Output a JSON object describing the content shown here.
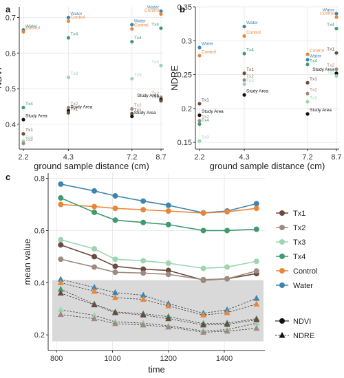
{
  "chart_data": [
    {
      "panel": "a",
      "type": "scatter",
      "xlabel": "ground sample distance (cm)",
      "ylabel": "NDVI",
      "x_ticks": [
        2.2,
        4.3,
        7.2,
        8.7
      ],
      "y_ticks": [
        0.4,
        0.5,
        0.6,
        0.7
      ],
      "ylim": [
        0.33,
        0.73
      ],
      "points": [
        {
          "name": "Water",
          "color": "#3d85b0",
          "x": 2.2,
          "y": 0.665
        },
        {
          "name": "Control",
          "color": "#e8873a",
          "x": 2.2,
          "y": 0.66
        },
        {
          "name": "Tx4",
          "color": "#3f9a6e",
          "x": 2.2,
          "y": 0.447
        },
        {
          "name": "Study Area",
          "color": "#111111",
          "x": 2.2,
          "y": 0.413
        },
        {
          "name": "Tx1",
          "color": "#6b4b3e",
          "x": 2.2,
          "y": 0.373
        },
        {
          "name": "Tx3",
          "color": "#9bd6b0",
          "x": 2.2,
          "y": 0.352
        },
        {
          "name": "Tx2",
          "color": "#9e8a82",
          "x": 2.2,
          "y": 0.346
        },
        {
          "name": "Water",
          "color": "#3d85b0",
          "x": 4.3,
          "y": 0.7
        },
        {
          "name": "Control",
          "color": "#e8873a",
          "x": 4.3,
          "y": 0.69
        },
        {
          "name": "Tx4",
          "color": "#3f9a6e",
          "x": 4.3,
          "y": 0.643
        },
        {
          "name": "Tx3",
          "color": "#9bd6b0",
          "x": 4.3,
          "y": 0.532
        },
        {
          "name": "Tx2",
          "color": "#9e8a82",
          "x": 4.3,
          "y": 0.447
        },
        {
          "name": "Study Area",
          "color": "#111111",
          "x": 4.3,
          "y": 0.438
        },
        {
          "name": "Tx1",
          "color": "#6b4b3e",
          "x": 4.3,
          "y": 0.432
        },
        {
          "name": "Water",
          "color": "#3d85b0",
          "x": 7.2,
          "y": 0.68
        },
        {
          "name": "Control",
          "color": "#e8873a",
          "x": 7.2,
          "y": 0.668
        },
        {
          "name": "Tx4",
          "color": "#3f9a6e",
          "x": 7.2,
          "y": 0.632
        },
        {
          "name": "Tx3",
          "color": "#9bd6b0",
          "x": 7.2,
          "y": 0.528
        },
        {
          "name": "Tx2",
          "color": "#9e8a82",
          "x": 7.2,
          "y": 0.443
        },
        {
          "name": "Tx1",
          "color": "#6b4b3e",
          "x": 7.2,
          "y": 0.43
        },
        {
          "name": "Study Area",
          "color": "#111111",
          "x": 7.2,
          "y": 0.422
        },
        {
          "name": "Water",
          "color": "#3d85b0",
          "x": 8.7,
          "y": 0.718
        },
        {
          "name": "Control",
          "color": "#e8873a",
          "x": 8.7,
          "y": 0.71
        },
        {
          "name": "Tx4",
          "color": "#3f9a6e",
          "x": 8.7,
          "y": 0.67
        },
        {
          "name": "Tx3",
          "color": "#9bd6b0",
          "x": 8.7,
          "y": 0.565
        },
        {
          "name": "Tx2",
          "color": "#9e8a82",
          "x": 8.7,
          "y": 0.476
        },
        {
          "name": "Study Area",
          "color": "#111111",
          "x": 8.7,
          "y": 0.47
        },
        {
          "name": "Tx1",
          "color": "#6b4b3e",
          "x": 8.7,
          "y": 0.466
        }
      ]
    },
    {
      "panel": "b",
      "type": "scatter",
      "xlabel": "ground sample distance (cm)",
      "ylabel": "NDRE",
      "x_ticks": [
        2.2,
        4.3,
        7.2,
        8.7
      ],
      "y_ticks": [
        0.15,
        0.2,
        0.25,
        0.3,
        0.35
      ],
      "ylim": [
        0.14,
        0.35
      ],
      "points": [
        {
          "name": "Water",
          "color": "#3d85b0",
          "x": 2.2,
          "y": 0.29
        },
        {
          "name": "Control",
          "color": "#e8873a",
          "x": 2.2,
          "y": 0.278
        },
        {
          "name": "Tx1",
          "color": "#6b4b3e",
          "x": 2.2,
          "y": 0.207
        },
        {
          "name": "Study Area",
          "color": "#111111",
          "x": 2.2,
          "y": 0.19
        },
        {
          "name": "Tx2",
          "color": "#9e8a82",
          "x": 2.2,
          "y": 0.182
        },
        {
          "name": "Tx4",
          "color": "#3f9a6e",
          "x": 2.2,
          "y": 0.177
        },
        {
          "name": "Tx3",
          "color": "#9bd6b0",
          "x": 2.2,
          "y": 0.152
        },
        {
          "name": "Water",
          "color": "#3d85b0",
          "x": 4.3,
          "y": 0.321
        },
        {
          "name": "Control",
          "color": "#e8873a",
          "x": 4.3,
          "y": 0.307
        },
        {
          "name": "Tx4",
          "color": "#3f9a6e",
          "x": 4.3,
          "y": 0.281
        },
        {
          "name": "Tx1",
          "color": "#6b4b3e",
          "x": 4.3,
          "y": 0.252
        },
        {
          "name": "Tx2",
          "color": "#9e8a82",
          "x": 4.3,
          "y": 0.242
        },
        {
          "name": "Tx3",
          "color": "#9bd6b0",
          "x": 4.3,
          "y": 0.236
        },
        {
          "name": "Study Area",
          "color": "#111111",
          "x": 4.3,
          "y": 0.22
        },
        {
          "name": "Control",
          "color": "#e8873a",
          "x": 7.2,
          "y": 0.28
        },
        {
          "name": "Water",
          "color": "#3d85b0",
          "x": 7.2,
          "y": 0.272
        },
        {
          "name": "Tx4",
          "color": "#3f9a6e",
          "x": 7.2,
          "y": 0.265
        },
        {
          "name": "Tx1",
          "color": "#6b4b3e",
          "x": 7.2,
          "y": 0.238
        },
        {
          "name": "Tx2",
          "color": "#9e8a82",
          "x": 7.2,
          "y": 0.222
        },
        {
          "name": "Tx3",
          "color": "#9bd6b0",
          "x": 7.2,
          "y": 0.21
        },
        {
          "name": "Study Area",
          "color": "#111111",
          "x": 7.2,
          "y": 0.192
        },
        {
          "name": "Water",
          "color": "#3d85b0",
          "x": 8.7,
          "y": 0.34
        },
        {
          "name": "Control",
          "color": "#e8873a",
          "x": 8.7,
          "y": 0.335
        },
        {
          "name": "Tx4",
          "color": "#3f9a6e",
          "x": 8.7,
          "y": 0.318
        },
        {
          "name": "Tx1",
          "color": "#6b4b3e",
          "x": 8.7,
          "y": 0.282
        },
        {
          "name": "Tx2",
          "color": "#9e8a82",
          "x": 8.7,
          "y": 0.258
        },
        {
          "name": "Study Area",
          "color": "#111111",
          "x": 8.7,
          "y": 0.252
        },
        {
          "name": "Tx3",
          "color": "#9bd6b0",
          "x": 8.7,
          "y": 0.248
        }
      ]
    },
    {
      "panel": "c",
      "type": "line",
      "xlabel": "time",
      "ylabel": "mean value",
      "x_ticks": [
        800,
        1000,
        1200,
        1400
      ],
      "y_ticks": [
        0.2,
        0.4,
        0.6,
        0.8
      ],
      "xlim": [
        770,
        1545
      ],
      "ylim": [
        0.14,
        0.82
      ],
      "highlight_band": [
        0.175,
        0.41
      ],
      "x": [
        815,
        935,
        1010,
        1110,
        1200,
        1325,
        1410,
        1515
      ],
      "legend": [
        {
          "name": "Tx1",
          "color": "#6b4b3e"
        },
        {
          "name": "Tx2",
          "color": "#9e8a82"
        },
        {
          "name": "Tx3",
          "color": "#9bd6b0"
        },
        {
          "name": "Tx4",
          "color": "#3f9a6e"
        },
        {
          "name": "Control",
          "color": "#e8873a"
        },
        {
          "name": "Water",
          "color": "#3d85b0"
        }
      ],
      "index_legend": [
        {
          "name": "NDVI",
          "marker": "circle",
          "dash": "solid"
        },
        {
          "name": "NDRE",
          "marker": "triangle",
          "dash": "dashed"
        }
      ],
      "series": [
        {
          "name": "Water",
          "color": "#3d85b0",
          "ndvi": [
            0.778,
            0.752,
            0.733,
            0.713,
            0.697,
            0.668,
            0.675,
            0.703
          ],
          "ndre": [
            0.413,
            0.382,
            0.362,
            0.352,
            0.32,
            0.283,
            0.296,
            0.34
          ]
        },
        {
          "name": "Control",
          "color": "#e8873a",
          "ndvi": [
            0.7,
            0.692,
            0.685,
            0.68,
            0.675,
            0.667,
            0.672,
            0.685
          ],
          "ndre": [
            0.4,
            0.367,
            0.343,
            0.336,
            0.311,
            0.276,
            0.285,
            0.318
          ]
        },
        {
          "name": "Tx4",
          "color": "#3f9a6e",
          "ndvi": [
            0.725,
            0.67,
            0.64,
            0.631,
            0.623,
            0.6,
            0.6,
            0.605
          ],
          "ndre": [
            0.375,
            0.318,
            0.288,
            0.281,
            0.27,
            0.243,
            0.245,
            0.262
          ]
        },
        {
          "name": "Tx3",
          "color": "#9bd6b0",
          "ndvi": [
            0.565,
            0.53,
            0.49,
            0.484,
            0.475,
            0.455,
            0.46,
            0.482
          ],
          "ndre": [
            0.296,
            0.275,
            0.25,
            0.245,
            0.235,
            0.215,
            0.22,
            0.245
          ]
        },
        {
          "name": "Tx1",
          "color": "#6b4b3e",
          "ndvi": [
            0.545,
            0.5,
            0.463,
            0.452,
            0.447,
            0.41,
            0.415,
            0.435
          ],
          "ndre": [
            0.36,
            0.315,
            0.285,
            0.276,
            0.262,
            0.238,
            0.24,
            0.258
          ]
        },
        {
          "name": "Tx2",
          "color": "#9e8a82",
          "ndvi": [
            0.49,
            0.46,
            0.44,
            0.437,
            0.432,
            0.412,
            0.415,
            0.445
          ],
          "ndre": [
            0.278,
            0.262,
            0.243,
            0.238,
            0.23,
            0.21,
            0.214,
            0.225
          ]
        }
      ]
    }
  ]
}
